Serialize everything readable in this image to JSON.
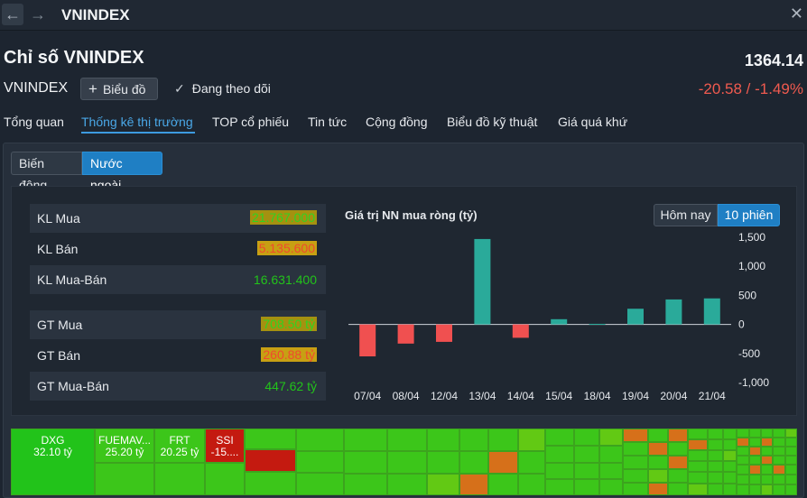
{
  "window": {
    "title": "VNINDEX",
    "back_icon": "arrow-left-icon",
    "forward_icon": "arrow-right-icon",
    "close_icon": "close-icon"
  },
  "header": {
    "title": "Chỉ số VNINDEX",
    "value": "1364.14",
    "code": "VNINDEX",
    "chart_button": "Biểu đồ",
    "follow_label": "Đang theo dõi",
    "change": "-20.58 / -1.49%"
  },
  "tabs": [
    {
      "label": "Tổng quan"
    },
    {
      "label": "Thống kê thị trường"
    },
    {
      "label": "TOP cổ phiếu"
    },
    {
      "label": "Tin tức"
    },
    {
      "label": "Cộng đồng"
    },
    {
      "label": "Biểu đồ kỹ thuật"
    },
    {
      "label": "Giá quá khứ"
    }
  ],
  "subtabs": [
    {
      "label": "Biến động"
    },
    {
      "label": "Nước ngoài"
    }
  ],
  "stats": {
    "kl_mua": {
      "label": "KL Mua",
      "value": "21.767.000"
    },
    "kl_ban": {
      "label": "KL Bán",
      "value": "5.135.600"
    },
    "kl_mua_ban": {
      "label": "KL Mua-Bán",
      "value": "16.631.400"
    },
    "gt_mua": {
      "label": "GT Mua",
      "value": "708.50 tỷ"
    },
    "gt_ban": {
      "label": "GT Bán",
      "value": "260.88 tỷ"
    },
    "gt_mua_ban": {
      "label": "GT Mua-Bán",
      "value": "447.62 tỷ"
    }
  },
  "range_buttons": [
    {
      "label": "Hôm nay"
    },
    {
      "label": "10 phiên"
    }
  ],
  "colors": {
    "positive": "#2aaa9a",
    "negative": "#f05050",
    "accent": "#1f7fc4"
  },
  "chart_data": {
    "type": "bar",
    "title": "Giá trị NN mua ròng (tỷ)",
    "categories": [
      "07/04",
      "08/04",
      "12/04",
      "13/04",
      "14/04",
      "15/04",
      "18/04",
      "19/04",
      "20/04",
      "21/04"
    ],
    "values": [
      -550,
      -330,
      -300,
      1470,
      -230,
      90,
      10,
      270,
      430,
      448
    ],
    "ylim": [
      -1000,
      1500
    ],
    "yticks": [
      "1,500",
      "1,000",
      "500",
      "0",
      "-500",
      "-1,000"
    ],
    "ytick_values": [
      1500,
      1000,
      500,
      0,
      -500,
      -1000
    ],
    "y_axis_position": "right",
    "grid": false
  },
  "heatmap": [
    {
      "label": "DXG",
      "value": "32.10 tỷ",
      "color": "#22c31a"
    },
    {
      "label": "FUEMAV...",
      "value": "25.20 tỷ",
      "color": "#3cc61a"
    },
    {
      "label": "FRT",
      "value": "20.25 tỷ",
      "color": "#3cc61a"
    },
    {
      "label": "SSI",
      "value": "-15....",
      "color": "#c41a10"
    }
  ]
}
